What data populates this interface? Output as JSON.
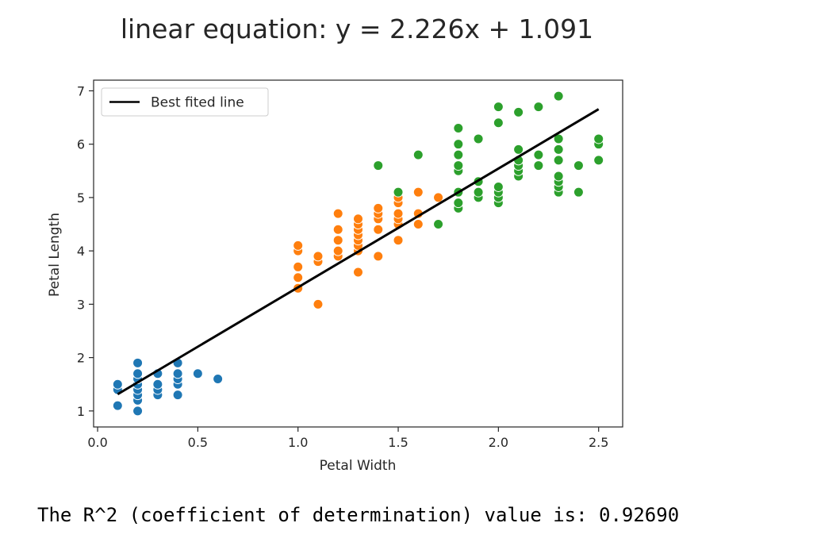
{
  "chart_data": {
    "type": "scatter",
    "title": "linear equation: y = 2.226x + 1.091",
    "xlabel": "Petal Width",
    "ylabel": "Petal Length",
    "xlim": [
      -0.02,
      2.62
    ],
    "ylim": [
      0.7,
      7.2
    ],
    "xticks": [
      0.0,
      0.5,
      1.0,
      1.5,
      2.0,
      2.5
    ],
    "xtick_labels": [
      "0.0",
      "0.5",
      "1.0",
      "1.5",
      "2.0",
      "2.5"
    ],
    "yticks": [
      1,
      2,
      3,
      4,
      5,
      6,
      7
    ],
    "ytick_labels": [
      "1",
      "2",
      "3",
      "4",
      "5",
      "6",
      "7"
    ],
    "grid": false,
    "legend": {
      "placement": "upper-left",
      "entries": [
        "Best fited line"
      ]
    },
    "line": {
      "label": "Best fited line",
      "slope": 2.226,
      "intercept": 1.091,
      "x_range": [
        0.1,
        2.5
      ],
      "color": "#000000"
    },
    "series": [
      {
        "color": "#1f77b4",
        "points": [
          [
            0.1,
            1.1
          ],
          [
            0.1,
            1.4
          ],
          [
            0.1,
            1.5
          ],
          [
            0.2,
            1.0
          ],
          [
            0.2,
            1.2
          ],
          [
            0.2,
            1.3
          ],
          [
            0.2,
            1.4
          ],
          [
            0.2,
            1.5
          ],
          [
            0.2,
            1.6
          ],
          [
            0.2,
            1.7
          ],
          [
            0.2,
            1.9
          ],
          [
            0.3,
            1.3
          ],
          [
            0.3,
            1.4
          ],
          [
            0.3,
            1.5
          ],
          [
            0.3,
            1.7
          ],
          [
            0.4,
            1.3
          ],
          [
            0.4,
            1.5
          ],
          [
            0.4,
            1.6
          ],
          [
            0.4,
            1.7
          ],
          [
            0.4,
            1.9
          ],
          [
            0.5,
            1.7
          ],
          [
            0.6,
            1.6
          ]
        ]
      },
      {
        "color": "#ff7f0e",
        "points": [
          [
            1.0,
            3.3
          ],
          [
            1.0,
            3.5
          ],
          [
            1.0,
            3.7
          ],
          [
            1.0,
            4.0
          ],
          [
            1.0,
            4.1
          ],
          [
            1.1,
            3.0
          ],
          [
            1.1,
            3.8
          ],
          [
            1.1,
            3.9
          ],
          [
            1.2,
            3.9
          ],
          [
            1.2,
            4.0
          ],
          [
            1.2,
            4.2
          ],
          [
            1.2,
            4.4
          ],
          [
            1.2,
            4.7
          ],
          [
            1.3,
            3.6
          ],
          [
            1.3,
            4.0
          ],
          [
            1.3,
            4.1
          ],
          [
            1.3,
            4.2
          ],
          [
            1.3,
            4.3
          ],
          [
            1.3,
            4.4
          ],
          [
            1.3,
            4.5
          ],
          [
            1.3,
            4.6
          ],
          [
            1.4,
            3.9
          ],
          [
            1.4,
            4.4
          ],
          [
            1.4,
            4.6
          ],
          [
            1.4,
            4.7
          ],
          [
            1.4,
            4.8
          ],
          [
            1.5,
            4.2
          ],
          [
            1.5,
            4.5
          ],
          [
            1.5,
            4.6
          ],
          [
            1.5,
            4.7
          ],
          [
            1.5,
            4.9
          ],
          [
            1.5,
            5.0
          ],
          [
            1.6,
            4.5
          ],
          [
            1.6,
            4.7
          ],
          [
            1.6,
            5.1
          ],
          [
            1.7,
            5.0
          ]
        ]
      },
      {
        "color": "#2ca02c",
        "points": [
          [
            1.4,
            5.6
          ],
          [
            1.5,
            5.1
          ],
          [
            1.6,
            5.8
          ],
          [
            1.7,
            4.5
          ],
          [
            1.8,
            4.8
          ],
          [
            1.8,
            4.9
          ],
          [
            1.8,
            5.1
          ],
          [
            1.8,
            5.5
          ],
          [
            1.8,
            5.6
          ],
          [
            1.8,
            5.8
          ],
          [
            1.8,
            6.0
          ],
          [
            1.8,
            6.3
          ],
          [
            1.9,
            5.0
          ],
          [
            1.9,
            5.1
          ],
          [
            1.9,
            5.3
          ],
          [
            1.9,
            6.1
          ],
          [
            2.0,
            4.9
          ],
          [
            2.0,
            5.0
          ],
          [
            2.0,
            5.1
          ],
          [
            2.0,
            5.2
          ],
          [
            2.0,
            6.4
          ],
          [
            2.0,
            6.7
          ],
          [
            2.1,
            5.4
          ],
          [
            2.1,
            5.5
          ],
          [
            2.1,
            5.6
          ],
          [
            2.1,
            5.7
          ],
          [
            2.1,
            5.9
          ],
          [
            2.1,
            6.6
          ],
          [
            2.2,
            5.6
          ],
          [
            2.2,
            5.8
          ],
          [
            2.2,
            6.7
          ],
          [
            2.3,
            5.1
          ],
          [
            2.3,
            5.2
          ],
          [
            2.3,
            5.3
          ],
          [
            2.3,
            5.4
          ],
          [
            2.3,
            5.7
          ],
          [
            2.3,
            5.9
          ],
          [
            2.3,
            6.1
          ],
          [
            2.3,
            6.9
          ],
          [
            2.4,
            5.1
          ],
          [
            2.4,
            5.6
          ],
          [
            2.5,
            5.7
          ],
          [
            2.5,
            6.0
          ],
          [
            2.5,
            6.1
          ]
        ]
      }
    ]
  },
  "footer": {
    "text": "The R^2 (coefficient of determination) value is: 0.92690"
  }
}
